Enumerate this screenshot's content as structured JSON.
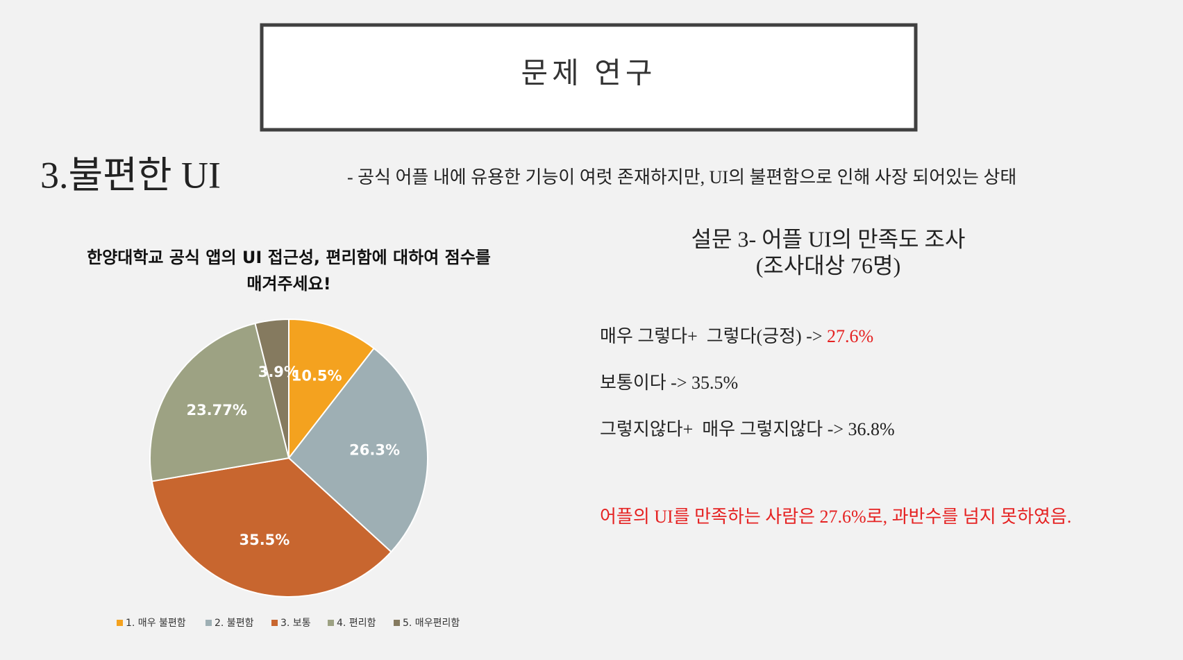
{
  "header": {
    "title": "문제 연구"
  },
  "section": {
    "title": "3.불편한 UI",
    "description": "- 공식 어플 내에 유용한 기능이 여럿 존재하지만, UI의 불편함으로 인해 사장 되어있는 상태"
  },
  "survey": {
    "title": "설문 3- 어플 UI의 만족도 조사",
    "subtitle": "(조사대상 76명)",
    "results": [
      {
        "text": "매우 그렇다+  그렇다(긍정) -> ",
        "highlight": "27.6%"
      },
      {
        "text": "보통이다 -> 35.5%"
      },
      {
        "text": "그렇지않다+  매우 그렇지않다 -> 36.8%"
      }
    ],
    "conclusion": "어플의 UI를 만족하는 사람은 27.6%로, 과반수를 넘지 못하였음."
  },
  "chart_data": {
    "type": "pie",
    "title": [
      "한양대학교 공식 앱의 UI 접근성, 편리함에 대하여 점수를",
      "매겨주세요!"
    ],
    "categories": [
      "1. 매우 불편함",
      "2. 불편함",
      "3. 보통",
      "4. 편리함",
      "5. 매우편리함"
    ],
    "values": [
      10.5,
      26.3,
      35.5,
      23.77,
      3.9
    ],
    "value_labels": [
      "10.5%",
      "26.3%",
      "35.5%",
      "23.77%",
      "3.9%"
    ],
    "colors": [
      "#f4a21f",
      "#9eafb4",
      "#c8662f",
      "#9da283",
      "#857a5f"
    ],
    "legend": "bottom"
  }
}
